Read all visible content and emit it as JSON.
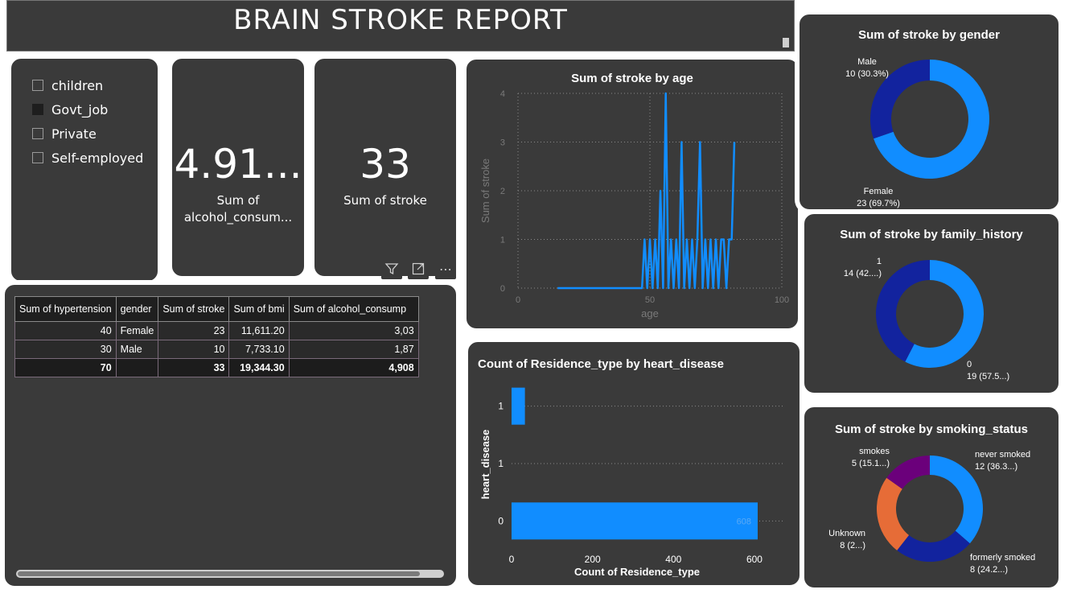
{
  "header": {
    "title": "BRAIN STROKE REPORT"
  },
  "slicer": {
    "items": [
      {
        "label": "children",
        "checked": false
      },
      {
        "label": "Govt_job",
        "checked": true
      },
      {
        "label": "Private",
        "checked": false
      },
      {
        "label": "Self-employed",
        "checked": false
      }
    ]
  },
  "kpi_alcohol": {
    "value": "4.91...",
    "label_line1": "Sum of",
    "label_line2": "alcohol_consum..."
  },
  "kpi_stroke": {
    "value": "33",
    "label": "Sum of stroke"
  },
  "visual_header": {
    "filter_icon": "filter-icon",
    "focus_icon": "focus-mode-icon",
    "more_icon": "more-options-icon",
    "more_glyph": "⋯"
  },
  "table": {
    "columns": [
      "Sum of hypertension",
      "gender",
      "Sum of stroke",
      "Sum of bmi",
      "Sum of alcohol_consump"
    ],
    "rows": [
      [
        "40",
        "Female",
        "23",
        "11,611.20",
        "3,03"
      ],
      [
        "30",
        "Male",
        "10",
        "7,733.10",
        "1,87"
      ]
    ],
    "total": [
      "70",
      "",
      "33",
      "19,344.30",
      "4,908"
    ]
  },
  "colors": {
    "accent": "#118dff",
    "dark_blue": "#12239e",
    "orange": "#e66c37",
    "purple": "#6b007b",
    "card": "#3a3a3a",
    "border": "#ffffff"
  },
  "chart_data": [
    {
      "type": "line",
      "title": "Sum of stroke by age",
      "xlabel": "age",
      "ylabel": "Sum of stroke",
      "xlim": [
        0,
        100
      ],
      "ylim": [
        0,
        4
      ],
      "xticks": [
        "0",
        "50",
        "100"
      ],
      "yticks": [
        "0",
        "1",
        "2",
        "3",
        "4"
      ],
      "grid": true,
      "series": [
        {
          "x": [
            15,
            47,
            48,
            49,
            50,
            51,
            52,
            53,
            54,
            55,
            56,
            57,
            58,
            59,
            60,
            61,
            62,
            63,
            64,
            65,
            66,
            67,
            68,
            69,
            70,
            71,
            72,
            73,
            74,
            75,
            76,
            77,
            78,
            79,
            80,
            81,
            82
          ],
          "y": [
            0,
            0,
            1,
            0,
            1,
            0,
            1,
            0,
            2,
            0,
            4,
            0,
            1,
            0,
            1,
            0,
            3,
            0,
            1,
            0,
            1,
            0,
            1,
            3,
            0,
            1,
            0,
            1,
            0,
            1,
            0,
            1,
            1,
            0,
            1,
            1,
            3
          ]
        }
      ]
    },
    {
      "type": "bar",
      "orientation": "horizontal",
      "title": "Count of Residence_type by heart_disease",
      "xlabel": "Count of Residence_type",
      "ylabel": "heart_disease",
      "categories": [
        "1",
        "1",
        "0"
      ],
      "values": [
        33,
        0,
        608
      ],
      "data_labels": [
        "",
        "",
        "608"
      ],
      "xlim": [
        0,
        608
      ],
      "xticks": [
        "0",
        "200",
        "400",
        "600"
      ],
      "grid": true
    },
    {
      "type": "pie",
      "donut": true,
      "title": "Sum of stroke by gender",
      "slices": [
        {
          "label": "Female",
          "value": 23,
          "detail": "23 (69.7%)",
          "color": "#118dff"
        },
        {
          "label": "Male",
          "value": 10,
          "detail": "10 (30.3%)",
          "color": "#12239e"
        }
      ]
    },
    {
      "type": "pie",
      "donut": true,
      "title": "Sum of stroke by family_history",
      "slices": [
        {
          "label": "0",
          "value": 19,
          "detail": "19 (57.5...)",
          "color": "#118dff"
        },
        {
          "label": "1",
          "value": 14,
          "detail": "14 (42....)",
          "color": "#12239e"
        }
      ]
    },
    {
      "type": "pie",
      "donut": true,
      "title": "Sum of stroke by smoking_status",
      "slices": [
        {
          "label": "never smoked",
          "value": 12,
          "detail": "12 (36.3...)",
          "color": "#118dff"
        },
        {
          "label": "formerly smoked",
          "value": 8,
          "detail": "8 (24.2...)",
          "color": "#12239e"
        },
        {
          "label": "Unknown",
          "value": 8,
          "detail": "8 (2...)",
          "color": "#e66c37"
        },
        {
          "label": "smokes",
          "value": 5,
          "detail": "5 (15.1...)",
          "color": "#6b007b"
        }
      ]
    }
  ]
}
